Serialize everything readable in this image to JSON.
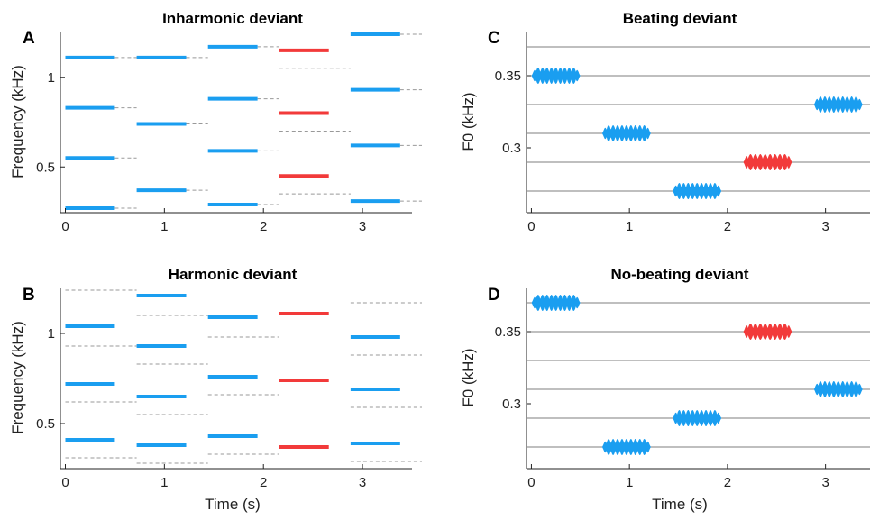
{
  "chart_data": [
    {
      "panel": "A",
      "type": "line",
      "title": "Inharmonic deviant",
      "xlabel": "",
      "ylabel": "Frequency (kHz)",
      "xlim": [
        -0.05,
        3.5
      ],
      "ylim": [
        0.245,
        1.25
      ],
      "xticks": [
        0,
        1,
        2,
        3
      ],
      "yticks": [
        0.5,
        1
      ],
      "ytick_labels": [
        "0.5",
        "1"
      ],
      "grid": false,
      "colors": {
        "standard": "#1a9ef0",
        "deviant": "#f23a3a",
        "reference": "#999999"
      },
      "tones": [
        {
          "start": 0.0,
          "end": 0.5,
          "deviant": false,
          "partials": [
            0.27,
            0.55,
            0.83,
            1.11
          ]
        },
        {
          "start": 0.72,
          "end": 1.22,
          "deviant": false,
          "partials": [
            0.37,
            0.74,
            1.11
          ]
        },
        {
          "start": 1.44,
          "end": 1.94,
          "deviant": false,
          "partials": [
            0.29,
            0.59,
            0.88,
            1.17
          ]
        },
        {
          "start": 2.16,
          "end": 2.66,
          "deviant": true,
          "partials": [
            0.45,
            0.8,
            1.15
          ]
        },
        {
          "start": 2.88,
          "end": 3.38,
          "deviant": false,
          "partials": [
            0.31,
            0.62,
            0.93,
            1.24
          ]
        }
      ],
      "reference_lines": [
        {
          "start": 0.5,
          "end": 0.72,
          "values": [
            0.27,
            0.55,
            0.83,
            1.11
          ]
        },
        {
          "start": 1.22,
          "end": 1.44,
          "values": [
            0.37,
            0.74,
            1.11
          ]
        },
        {
          "start": 1.94,
          "end": 2.16,
          "values": [
            0.29,
            0.59,
            0.88,
            1.17
          ]
        },
        {
          "start": 2.16,
          "end": 2.88,
          "values": [
            0.35,
            0.7,
            1.05
          ]
        },
        {
          "start": 3.38,
          "end": 3.6,
          "values": [
            0.31,
            0.62,
            0.93,
            1.24
          ]
        }
      ]
    },
    {
      "panel": "B",
      "type": "line",
      "title": "Harmonic deviant",
      "xlabel": "Time (s)",
      "ylabel": "Frequency (kHz)",
      "xlim": [
        -0.05,
        3.5
      ],
      "ylim": [
        0.25,
        1.25
      ],
      "xticks": [
        0,
        1,
        2,
        3
      ],
      "yticks": [
        0.5,
        1
      ],
      "ytick_labels": [
        "0.5",
        "1"
      ],
      "grid": false,
      "colors": {
        "standard": "#1a9ef0",
        "deviant": "#f23a3a",
        "reference": "#999999"
      },
      "tones": [
        {
          "start": 0.0,
          "end": 0.5,
          "deviant": false,
          "partials": [
            0.41,
            0.72,
            1.04
          ]
        },
        {
          "start": 0.72,
          "end": 1.22,
          "deviant": false,
          "partials": [
            0.38,
            0.65,
            0.93,
            1.21
          ]
        },
        {
          "start": 1.44,
          "end": 1.94,
          "deviant": false,
          "partials": [
            0.43,
            0.76,
            1.09
          ]
        },
        {
          "start": 2.16,
          "end": 2.66,
          "deviant": true,
          "partials": [
            0.37,
            0.74,
            1.11
          ]
        },
        {
          "start": 2.88,
          "end": 3.38,
          "deviant": false,
          "partials": [
            0.39,
            0.69,
            0.98
          ]
        }
      ],
      "reference_lines": [
        {
          "start": 0.0,
          "end": 0.72,
          "values": [
            0.31,
            0.62,
            0.93,
            1.24
          ]
        },
        {
          "start": 0.72,
          "end": 1.44,
          "values": [
            0.28,
            0.55,
            0.83,
            1.1
          ]
        },
        {
          "start": 1.44,
          "end": 2.16,
          "values": [
            0.33,
            0.66,
            0.98
          ]
        },
        {
          "start": 2.16,
          "end": 2.38,
          "values": [
            0.37,
            0.74,
            1.11
          ]
        },
        {
          "start": 2.88,
          "end": 3.6,
          "values": [
            0.29,
            0.59,
            0.88,
            1.17
          ]
        }
      ]
    },
    {
      "panel": "C",
      "type": "line",
      "title": "Beating deviant",
      "xlabel": "",
      "ylabel": "F0 (kHz)",
      "xlim": [
        -0.05,
        3.5
      ],
      "ylim": [
        0.255,
        0.38
      ],
      "xticks": [
        0,
        1,
        2,
        3
      ],
      "yticks": [
        0.3,
        0.35
      ],
      "ytick_labels": [
        "0.3",
        "0.35"
      ],
      "grid": true,
      "gridlines": [
        0.27,
        0.29,
        0.31,
        0.33,
        0.35,
        0.37
      ],
      "colors": {
        "standard": "#1a9ef0",
        "deviant": "#f23a3a"
      },
      "tones": [
        {
          "start": 0.0,
          "end": 0.5,
          "f0": 0.35,
          "deviant": false
        },
        {
          "start": 0.72,
          "end": 1.22,
          "f0": 0.31,
          "deviant": false
        },
        {
          "start": 1.44,
          "end": 1.94,
          "f0": 0.27,
          "deviant": false
        },
        {
          "start": 2.16,
          "end": 2.66,
          "f0": 0.29,
          "deviant": true
        },
        {
          "start": 2.88,
          "end": 3.38,
          "f0": 0.33,
          "deviant": false
        }
      ]
    },
    {
      "panel": "D",
      "type": "line",
      "title": "No-beating deviant",
      "xlabel": "Time (s)",
      "ylabel": "F0 (kHz)",
      "xlim": [
        -0.05,
        3.5
      ],
      "ylim": [
        0.255,
        0.38
      ],
      "xticks": [
        0,
        1,
        2,
        3
      ],
      "yticks": [
        0.3,
        0.35
      ],
      "ytick_labels": [
        "0.3",
        "0.35"
      ],
      "grid": true,
      "gridlines": [
        0.27,
        0.29,
        0.31,
        0.33,
        0.35,
        0.37
      ],
      "colors": {
        "standard": "#1a9ef0",
        "deviant": "#f23a3a"
      },
      "tones": [
        {
          "start": 0.0,
          "end": 0.5,
          "f0": 0.37,
          "deviant": false
        },
        {
          "start": 0.72,
          "end": 1.22,
          "f0": 0.27,
          "deviant": false
        },
        {
          "start": 1.44,
          "end": 1.94,
          "f0": 0.29,
          "deviant": false
        },
        {
          "start": 2.16,
          "end": 2.66,
          "f0": 0.35,
          "deviant": true
        },
        {
          "start": 2.88,
          "end": 3.38,
          "f0": 0.31,
          "deviant": false
        }
      ]
    }
  ]
}
